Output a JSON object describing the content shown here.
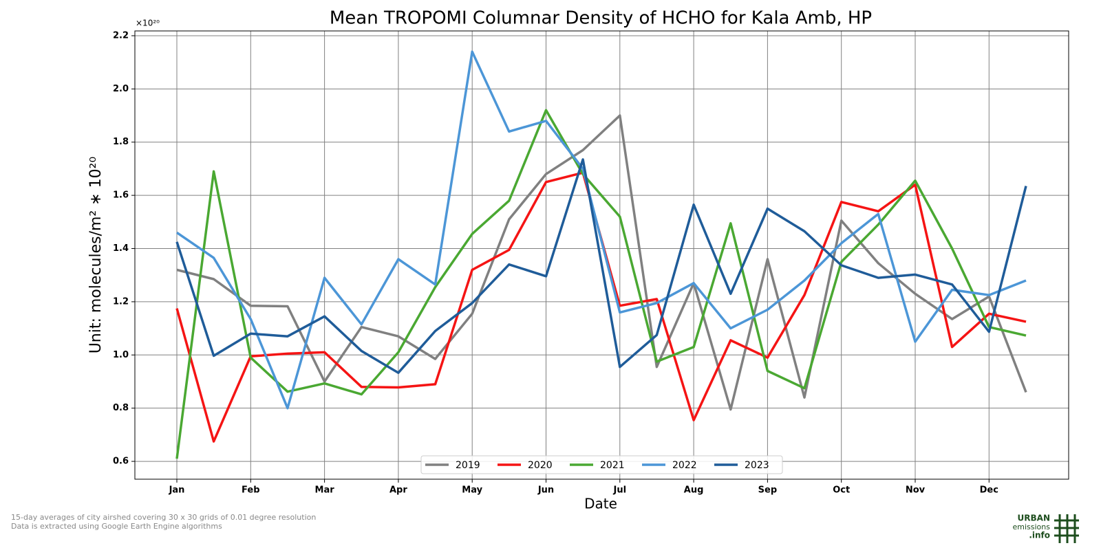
{
  "chart_data": {
    "type": "line",
    "title": "Mean TROPOMI Columnar Density of HCHO for Kala Amb, HP",
    "x_label": "Date",
    "y_label": "Unit: molecules/m² ∗ 10²⁰",
    "y_offset_label": "×10²⁰",
    "categories": [
      "Jan",
      null,
      "Feb",
      null,
      "Mar",
      null,
      "Apr",
      null,
      "May",
      null,
      "Jun",
      null,
      "Jul",
      null,
      "Aug",
      null,
      "Sep",
      null,
      "Oct",
      null,
      "Nov",
      null,
      "Dec",
      null
    ],
    "series": [
      {
        "name": "2019",
        "color": "#808080",
        "values": [
          1.32,
          1.285,
          1.185,
          1.183,
          0.9,
          1.105,
          1.07,
          0.985,
          1.155,
          1.51,
          1.68,
          1.77,
          1.9,
          0.955,
          1.27,
          0.795,
          1.36,
          0.84,
          1.505,
          1.345,
          1.23,
          1.135,
          1.22,
          0.86
        ]
      },
      {
        "name": "2020",
        "color": "#f51414",
        "values": [
          1.175,
          0.675,
          0.995,
          1.005,
          1.01,
          0.88,
          0.878,
          0.89,
          1.32,
          1.395,
          1.65,
          1.685,
          1.185,
          1.21,
          0.755,
          1.055,
          0.99,
          1.225,
          1.575,
          1.54,
          1.64,
          1.03,
          1.155,
          1.125
        ]
      },
      {
        "name": "2021",
        "color": "#4aa832",
        "values": [
          0.61,
          1.69,
          0.99,
          0.862,
          0.893,
          0.852,
          1.01,
          1.255,
          1.455,
          1.58,
          1.92,
          1.68,
          1.52,
          0.975,
          1.03,
          1.495,
          0.94,
          0.875,
          1.35,
          1.49,
          1.655,
          1.4,
          1.105,
          1.073
        ]
      },
      {
        "name": "2022",
        "color": "#4c96d7",
        "values": [
          1.46,
          1.365,
          1.135,
          0.8,
          1.29,
          1.115,
          1.36,
          1.265,
          2.14,
          1.84,
          1.88,
          1.7,
          1.16,
          1.195,
          1.27,
          1.1,
          1.17,
          1.28,
          1.42,
          1.53,
          1.05,
          1.245,
          1.225,
          1.28
        ]
      },
      {
        "name": "2023",
        "color": "#1f5c99",
        "values": [
          1.425,
          0.997,
          1.08,
          1.07,
          1.145,
          1.015,
          0.933,
          1.09,
          1.195,
          1.34,
          1.296,
          1.735,
          0.955,
          1.075,
          1.565,
          1.23,
          1.55,
          1.465,
          1.337,
          1.29,
          1.302,
          1.265,
          1.087,
          1.635
        ]
      }
    ],
    "ylim": [
      0.533,
      2.218
    ],
    "yticks": [
      0.6,
      0.8,
      {
        "value": 1,
        "label": "1.0"
      },
      1.2,
      1.4,
      1.6,
      1.8,
      {
        "value": 2,
        "label": "2.0"
      },
      2.2
    ],
    "grid": true,
    "legend": "lower center",
    "annotations": [
      "15-day averages of city airshed covering 30 x 30 grids of 0.01 degree resolution",
      "Data is extracted using Google Earth Engine algorithms"
    ],
    "logo": [
      "URBAN",
      "emissions",
      ".info"
    ]
  }
}
